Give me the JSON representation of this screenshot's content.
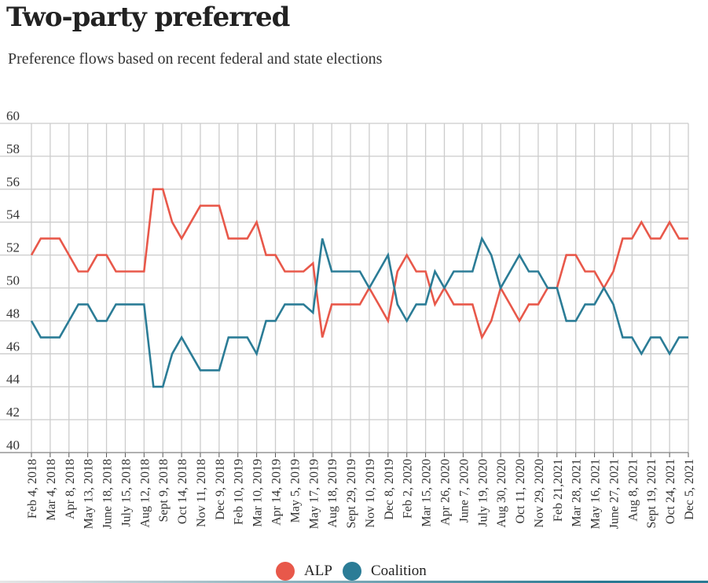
{
  "title": "Two-party preferred",
  "subtitle": "Preference flows based on recent federal and state elections",
  "colors": {
    "ALP": "#e8584a",
    "Coalition": "#2b7c96",
    "grid": "#cccccc"
  },
  "chart_data": {
    "type": "line",
    "title": "Two-party preferred",
    "subtitle": "Preference flows based on recent federal and state elections",
    "ylim": [
      40,
      60
    ],
    "yticks": [
      40,
      42,
      44,
      46,
      48,
      50,
      52,
      54,
      56,
      58,
      60
    ],
    "grid": true,
    "legend": "bottom-center",
    "x_tick_labels": [
      "Feb 4, 2018",
      "Mar 4, 2018",
      "Apr 8, 2018",
      "May 13, 2018",
      "June 18, 2018",
      "July 15, 2018",
      "Aug 12, 2018",
      "Sept 9, 2018",
      "Oct 14, 2018",
      "Nov 11, 2018",
      "Dec 9, 2018",
      "Feb 10, 2019",
      "Mar 10, 2019",
      "Apr 14, 2019",
      "May 5, 2019",
      "May 17, 2019",
      "Aug 18, 2019",
      "Sept 29, 2019",
      "Nov 10, 2019",
      "Dec 8, 2019",
      "Feb 2, 2020",
      "Mar 15, 2020",
      "Apr 26, 2020",
      "June 7, 2020",
      "July 19, 2020",
      "Aug 30, 2020",
      "Oct 11, 2020",
      "Nov 29, 2020",
      "Feb 21,2021",
      "Mar 28, 2021",
      "May 16, 2021",
      "June 27, 2021",
      "Aug 8, 2021",
      "Sept 19, 2021",
      "Oct 24, 2021",
      "Dec 5, 2021"
    ],
    "series": [
      {
        "name": "ALP",
        "values": [
          52,
          53,
          53,
          53,
          52,
          51,
          51,
          52,
          52,
          51,
          51,
          51,
          51,
          56,
          56,
          54,
          53,
          54,
          55,
          55,
          55,
          53,
          53,
          53,
          54,
          52,
          52,
          51,
          51,
          51,
          51.5,
          47,
          49,
          49,
          49,
          49,
          50,
          49,
          48,
          51,
          52,
          51,
          51,
          49,
          50,
          49,
          49,
          49,
          47,
          48,
          50,
          49,
          48,
          49,
          49,
          50,
          50,
          52,
          52,
          51,
          51,
          50,
          51,
          53,
          53,
          54,
          53,
          53,
          54,
          53,
          53
        ]
      },
      {
        "name": "Coalition",
        "values": [
          48,
          47,
          47,
          47,
          48,
          49,
          49,
          48,
          48,
          49,
          49,
          49,
          49,
          44,
          44,
          46,
          47,
          46,
          45,
          45,
          45,
          47,
          47,
          47,
          46,
          48,
          48,
          49,
          49,
          49,
          48.5,
          53,
          51,
          51,
          51,
          51,
          50,
          51,
          52,
          49,
          48,
          49,
          49,
          51,
          50,
          51,
          51,
          51,
          53,
          52,
          50,
          51,
          52,
          51,
          51,
          50,
          50,
          48,
          48,
          49,
          49,
          50,
          49,
          47,
          47,
          46,
          47,
          47,
          46,
          47,
          47
        ]
      }
    ]
  },
  "legend": {
    "alp_label": "ALP",
    "coalition_label": "Coalition"
  }
}
